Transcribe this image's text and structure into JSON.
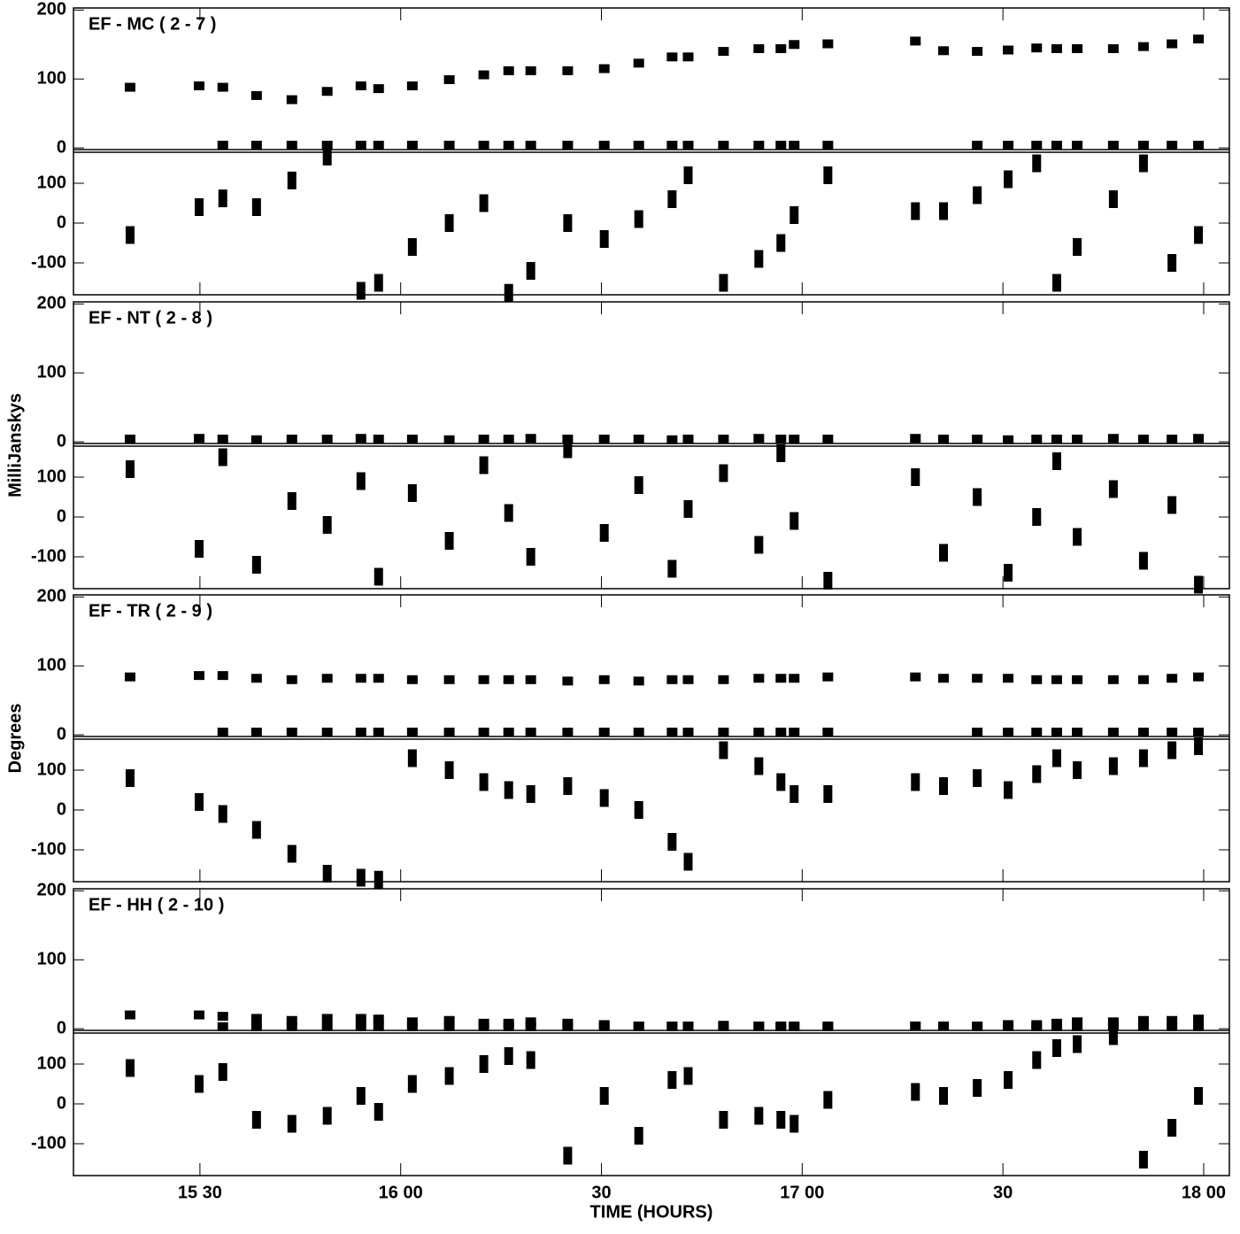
{
  "chart_data": [
    {
      "type": "scatter",
      "title": "EF - MC ( 2 - 7 )",
      "xlim": [
        15.185,
        18.064
      ],
      "ylim": [
        -5,
        203
      ],
      "yticks": [
        0,
        100,
        200
      ],
      "y2lim": [
        -180,
        180
      ],
      "y2ticks": [
        -100,
        0,
        100
      ],
      "x": [
        15.326,
        15.498,
        15.557,
        15.641,
        15.729,
        15.817,
        15.901,
        15.945,
        16.029,
        16.121,
        16.207,
        16.269,
        16.324,
        16.416,
        16.507,
        16.593,
        16.676,
        16.716,
        16.804,
        16.892,
        16.947,
        16.98,
        17.064,
        17.282,
        17.352,
        17.436,
        17.513,
        17.584,
        17.634,
        17.685,
        17.775,
        17.85,
        17.921,
        17.987
      ],
      "series": [
        {
          "color": "#000000",
          "values": [
            88,
            90,
            88,
            76,
            70,
            82,
            90,
            86,
            90,
            99,
            106,
            112,
            112,
            112,
            115,
            123,
            132,
            132,
            140,
            144,
            144,
            150,
            151,
            155,
            141,
            140,
            142,
            145,
            144,
            144,
            144,
            147,
            151,
            158
          ]
        },
        {
          "color": "#000000",
          "values": [
            null,
            null,
            4,
            4,
            4,
            4,
            4,
            4,
            4,
            4,
            4,
            4,
            4,
            4,
            4,
            4,
            4,
            4,
            4,
            4,
            4,
            4,
            4,
            null,
            null,
            4,
            4,
            4,
            4,
            4,
            4,
            4,
            4,
            4
          ]
        },
        {
          "color": "#000000",
          "axis": "y2",
          "values": [
            -30,
            40,
            62,
            40,
            107,
            167,
            -170,
            -150,
            -60,
            0,
            50,
            -175,
            -120,
            0,
            -40,
            10,
            60,
            120,
            -150,
            -90,
            -50,
            20,
            120,
            30,
            30,
            70,
            110,
            150,
            -150,
            -60,
            60,
            150,
            -100,
            -30
          ]
        }
      ]
    },
    {
      "type": "scatter",
      "title": "EF - NT ( 2 - 8 )",
      "ylabel": "MilliJanskys",
      "xlim": [
        15.185,
        18.064
      ],
      "ylim": [
        -5,
        203
      ],
      "yticks": [
        0,
        100,
        200
      ],
      "y2lim": [
        -180,
        180
      ],
      "y2ticks": [
        -100,
        0,
        100
      ],
      "x": [
        15.326,
        15.498,
        15.557,
        15.641,
        15.729,
        15.817,
        15.901,
        15.945,
        16.029,
        16.121,
        16.207,
        16.269,
        16.324,
        16.416,
        16.507,
        16.593,
        16.676,
        16.716,
        16.804,
        16.892,
        16.947,
        16.98,
        17.064,
        17.282,
        17.352,
        17.436,
        17.513,
        17.584,
        17.634,
        17.685,
        17.775,
        17.85,
        17.921,
        17.987
      ],
      "series": [
        {
          "color": "#000000",
          "values": [
            4,
            5,
            4,
            3,
            4,
            4,
            5,
            4,
            4,
            3,
            4,
            4,
            5,
            4,
            4,
            4,
            3,
            4,
            4,
            5,
            4,
            4,
            4,
            5,
            4,
            4,
            3,
            4,
            4,
            4,
            5,
            4,
            4,
            5
          ]
        },
        {
          "color": "#000000",
          "axis": "y2",
          "values": [
            120,
            -80,
            150,
            -120,
            40,
            -20,
            90,
            -150,
            60,
            -60,
            130,
            10,
            -100,
            170,
            -40,
            80,
            -130,
            20,
            110,
            -70,
            160,
            -10,
            -160,
            100,
            -90,
            50,
            -140,
            0,
            140,
            -50,
            70,
            -110,
            30,
            -170
          ]
        }
      ]
    },
    {
      "type": "scatter",
      "title": "EF - TR ( 2 - 9 )",
      "ylabel": "Degrees",
      "xlim": [
        15.185,
        18.064
      ],
      "ylim": [
        -5,
        203
      ],
      "yticks": [
        0,
        100,
        200
      ],
      "y2lim": [
        -180,
        180
      ],
      "y2ticks": [
        -100,
        0,
        100
      ],
      "x": [
        15.326,
        15.498,
        15.557,
        15.641,
        15.729,
        15.817,
        15.901,
        15.945,
        16.029,
        16.121,
        16.207,
        16.269,
        16.324,
        16.416,
        16.507,
        16.593,
        16.676,
        16.716,
        16.804,
        16.892,
        16.947,
        16.98,
        17.064,
        17.282,
        17.352,
        17.436,
        17.513,
        17.584,
        17.634,
        17.685,
        17.775,
        17.85,
        17.921,
        17.987
      ],
      "series": [
        {
          "color": "#000000",
          "values": [
            84,
            86,
            86,
            82,
            80,
            82,
            82,
            82,
            80,
            80,
            80,
            80,
            80,
            78,
            80,
            78,
            80,
            80,
            80,
            82,
            82,
            82,
            84,
            84,
            82,
            82,
            82,
            80,
            80,
            80,
            80,
            80,
            82,
            84
          ]
        },
        {
          "color": "#000000",
          "values": [
            null,
            null,
            4,
            4,
            4,
            4,
            4,
            4,
            4,
            4,
            4,
            4,
            4,
            4,
            4,
            4,
            4,
            4,
            4,
            4,
            4,
            4,
            4,
            null,
            null,
            4,
            4,
            4,
            4,
            4,
            4,
            4,
            4,
            4
          ]
        },
        {
          "color": "#000000",
          "axis": "y2",
          "values": [
            80,
            20,
            -10,
            -50,
            -110,
            -160,
            -170,
            -175,
            130,
            100,
            70,
            50,
            40,
            60,
            30,
            0,
            -80,
            -130,
            150,
            110,
            70,
            40,
            40,
            70,
            60,
            80,
            50,
            90,
            130,
            100,
            110,
            130,
            150,
            160
          ]
        }
      ]
    },
    {
      "type": "scatter",
      "title": "EF - HH ( 2 - 10 )",
      "xlabel": "TIME (HOURS)",
      "xlim": [
        15.185,
        18.064
      ],
      "ylim": [
        -5,
        203
      ],
      "yticks": [
        0,
        100,
        200
      ],
      "y2lim": [
        -180,
        180
      ],
      "y2ticks": [
        -100,
        0,
        100
      ],
      "xticks": [
        {
          "value": 15.5,
          "label": "15 30"
        },
        {
          "value": 16,
          "label": "16 00"
        },
        {
          "value": 16.5,
          "label": "30"
        },
        {
          "value": 17,
          "label": "17 00"
        },
        {
          "value": 17.5,
          "label": "30"
        },
        {
          "value": 18,
          "label": "18 00"
        }
      ],
      "x": [
        15.326,
        15.498,
        15.557,
        15.641,
        15.729,
        15.817,
        15.901,
        15.945,
        16.029,
        16.121,
        16.207,
        16.269,
        16.324,
        16.416,
        16.507,
        16.593,
        16.676,
        16.716,
        16.804,
        16.892,
        16.947,
        16.98,
        17.064,
        17.282,
        17.352,
        17.436,
        17.513,
        17.584,
        17.634,
        17.685,
        17.775,
        17.85,
        17.921,
        17.987
      ],
      "series": [
        {
          "color": "#000000",
          "values": [
            20,
            20,
            18,
            15,
            12,
            15,
            15,
            14,
            10,
            12,
            8,
            8,
            10,
            8,
            6,
            4,
            4,
            4,
            5,
            4,
            4,
            4,
            4,
            4,
            4,
            4,
            6,
            6,
            8,
            10,
            10,
            12,
            12,
            14
          ]
        },
        {
          "color": "#000000",
          "values": [
            null,
            null,
            3,
            3,
            3,
            3,
            3,
            3,
            3,
            3,
            3,
            3,
            3,
            3,
            3,
            3,
            3,
            3,
            3,
            3,
            3,
            3,
            3,
            null,
            null,
            3,
            3,
            3,
            3,
            3,
            3,
            3,
            3,
            3
          ]
        },
        {
          "color": "#000000",
          "axis": "y2",
          "values": [
            90,
            50,
            80,
            -40,
            -50,
            -30,
            20,
            -20,
            50,
            70,
            100,
            120,
            110,
            -130,
            20,
            -80,
            60,
            70,
            -40,
            -30,
            -40,
            -50,
            10,
            30,
            20,
            40,
            60,
            110,
            140,
            150,
            170,
            -140,
            -60,
            20
          ]
        }
      ]
    }
  ]
}
